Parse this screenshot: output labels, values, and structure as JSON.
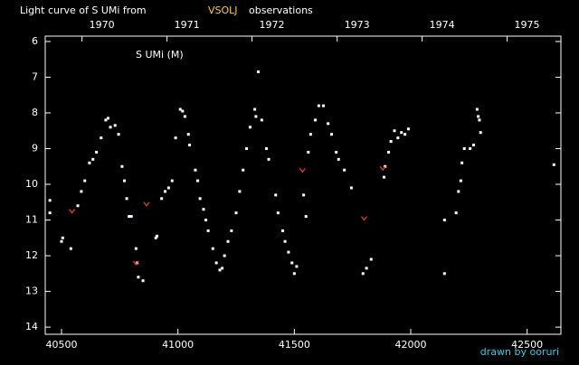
{
  "chart_data": {
    "type": "scatter",
    "title": "Light curve of S UMi from",
    "title_highlight": "VSOLJ",
    "title_suffix": "observations",
    "annotation": "S UMi (M)",
    "credit": "drawn by ooruri",
    "xlim": [
      40430,
      42645
    ],
    "xticks": [
      40500,
      41000,
      41500,
      42000,
      42500
    ],
    "x2ticks": [
      {
        "value": 40588,
        "label": "1970"
      },
      {
        "value": 40953,
        "label": "1971"
      },
      {
        "value": 41318,
        "label": "1972"
      },
      {
        "value": 41684,
        "label": "1973"
      },
      {
        "value": 42049,
        "label": "1974"
      },
      {
        "value": 42414,
        "label": "1975"
      }
    ],
    "ylim": [
      5.85,
      14.2
    ],
    "invert_y": true,
    "yticks": [
      6,
      7,
      8,
      9,
      10,
      11,
      12,
      13,
      14
    ],
    "series": [
      {
        "color": "#ffffff",
        "marker": "dot",
        "x": [
          40450,
          40450,
          40500,
          40505,
          40540,
          40570,
          40585,
          40600,
          40620,
          40635,
          40650,
          40670,
          40690,
          40700,
          40710,
          40730,
          40745,
          40760,
          40770,
          40780,
          40790,
          40800,
          40820,
          40825,
          40830,
          40850,
          40905,
          40910,
          40930,
          40945,
          40960,
          40975,
          40990,
          41010,
          41020,
          41030,
          41045,
          41050,
          41075,
          41085,
          41095,
          41110,
          41120,
          41130,
          41150,
          41165,
          41180,
          41190,
          41200,
          41215,
          41230,
          41250,
          41265,
          41280,
          41295,
          41310,
          41330,
          41335,
          41345,
          41360,
          41380,
          41390,
          41420,
          41430,
          41450,
          41460,
          41475,
          41490,
          41500,
          41510,
          41540,
          41550,
          41560,
          41570,
          41590,
          41605,
          41625,
          41645,
          41660,
          41680,
          41690,
          41715,
          41745,
          41795,
          41810,
          41830,
          41885,
          41890,
          41905,
          41915,
          41930,
          41945,
          41960,
          41975,
          41990,
          42145,
          42145,
          42195,
          42205,
          42215,
          42220,
          42230,
          42255,
          42270,
          42285,
          42290,
          42295,
          42300,
          42615
        ],
        "values": [
          10.45,
          10.8,
          11.6,
          11.5,
          11.8,
          10.6,
          10.2,
          9.9,
          9.4,
          9.3,
          9.1,
          8.7,
          8.2,
          8.15,
          8.4,
          8.35,
          8.6,
          9.5,
          9.9,
          10.4,
          10.9,
          10.9,
          11.8,
          12.2,
          12.6,
          12.7,
          11.5,
          11.45,
          10.4,
          10.2,
          10.1,
          9.9,
          8.7,
          7.9,
          7.95,
          8.1,
          8.6,
          8.9,
          9.6,
          9.9,
          10.4,
          10.7,
          11.0,
          11.3,
          11.8,
          12.2,
          12.4,
          12.35,
          12.0,
          11.6,
          11.3,
          10.8,
          10.2,
          9.6,
          9.0,
          8.4,
          7.9,
          8.1,
          6.85,
          8.2,
          9.0,
          9.3,
          10.3,
          10.8,
          11.3,
          11.6,
          11.9,
          12.2,
          12.5,
          12.3,
          10.3,
          10.9,
          9.1,
          8.6,
          8.2,
          7.8,
          7.8,
          8.3,
          8.6,
          9.1,
          9.3,
          9.6,
          10.1,
          12.5,
          12.35,
          12.1,
          9.8,
          9.5,
          9.1,
          8.8,
          8.5,
          8.7,
          8.55,
          8.6,
          8.45,
          11.0,
          12.5,
          10.8,
          10.2,
          9.9,
          9.4,
          9.0,
          9.0,
          8.9,
          7.9,
          8.1,
          8.2,
          8.55,
          9.45
        ]
      },
      {
        "color": "#ff3b1f",
        "marker": "v",
        "x": [
          40545,
          40820,
          40865,
          41535,
          41800,
          41880
        ],
        "values": [
          10.75,
          12.2,
          10.55,
          9.6,
          10.95,
          9.55
        ]
      }
    ]
  }
}
